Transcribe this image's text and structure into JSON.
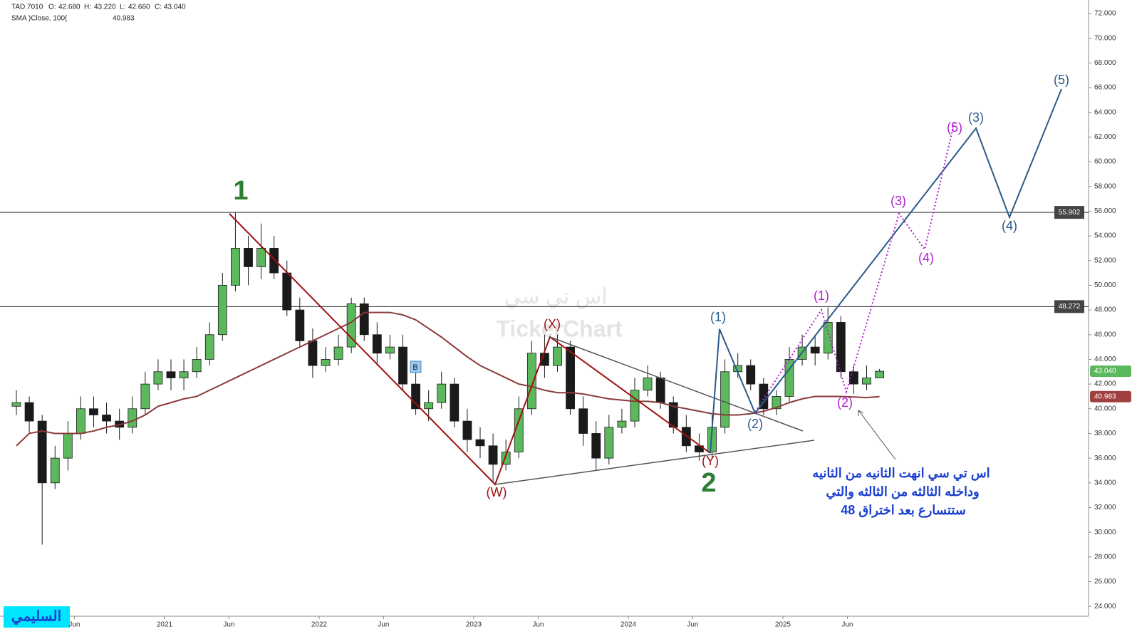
{
  "chart_data": {
    "type": "candlestick",
    "symbol": "TAD.7010",
    "ohlc_header": {
      "o_label": "O:",
      "o": "42.680",
      "h_label": "H:",
      "h": "43.220",
      "l_label": "L:",
      "l": "42.660",
      "c_label": "C:",
      "c": "43.040"
    },
    "sma_label": "SMA )Close, 100(",
    "sma_value": "40.983",
    "x": [
      "2020-01",
      "2020-02",
      "2020-03",
      "2020-04",
      "2020-05",
      "2020-06",
      "2020-07",
      "2020-08",
      "2020-09",
      "2020-10",
      "2020-11",
      "2020-12",
      "2021-01",
      "2021-02",
      "2021-03",
      "2021-04",
      "2021-05",
      "2021-06",
      "2021-07",
      "2021-08",
      "2021-09",
      "2021-10",
      "2021-11",
      "2021-12",
      "2022-01",
      "2022-02",
      "2022-03",
      "2022-04",
      "2022-05",
      "2022-06",
      "2022-07",
      "2022-08",
      "2022-09",
      "2022-10",
      "2022-11",
      "2022-12",
      "2023-01",
      "2023-02",
      "2023-03",
      "2023-04",
      "2023-05",
      "2023-06",
      "2023-07",
      "2023-08",
      "2023-09",
      "2023-10",
      "2023-11",
      "2023-12",
      "2024-01",
      "2024-02",
      "2024-03",
      "2024-04",
      "2024-05",
      "2024-06",
      "2024-07",
      "2024-08",
      "2024-09",
      "2024-10",
      "2024-11",
      "2024-12",
      "2025-01",
      "2025-02",
      "2025-03",
      "2025-04",
      "2025-05",
      "2025-06",
      "2025-07",
      "2025-08"
    ],
    "open": [
      40.2,
      40.5,
      39,
      34,
      36,
      38,
      40,
      39.5,
      39,
      38.5,
      40,
      42,
      43,
      42.5,
      43,
      44,
      46,
      50,
      53,
      51.5,
      53,
      51,
      48,
      45.5,
      43.5,
      44,
      45,
      48.5,
      46,
      44.5,
      45,
      42,
      40,
      40.5,
      42,
      39,
      37.5,
      37,
      35.5,
      36.5,
      40,
      44.5,
      43.5,
      45,
      40,
      38,
      36,
      38.5,
      39,
      41.5,
      42.5,
      40.5,
      38.5,
      37,
      36.5,
      38.5,
      43,
      43.5,
      42,
      40,
      41,
      44,
      45,
      44.5,
      47,
      43,
      42,
      42.5
    ],
    "high": [
      41.5,
      41,
      39.5,
      37,
      39,
      41,
      41,
      40.5,
      40,
      41,
      43,
      44,
      44,
      44,
      45,
      47,
      51,
      55.9,
      54,
      55,
      54,
      52,
      49,
      46.5,
      45,
      46,
      49,
      49,
      47,
      46,
      46,
      43,
      41.5,
      43,
      42.5,
      40,
      38.5,
      38,
      37.5,
      41,
      45.5,
      46,
      46,
      45.5,
      41,
      39,
      39.5,
      40,
      42.5,
      43.5,
      43,
      41,
      39.5,
      38,
      39.5,
      44,
      44.5,
      44,
      42.5,
      41.5,
      45,
      46,
      46,
      48.2,
      47.5,
      43.5,
      43.5,
      43.22
    ],
    "low": [
      39.5,
      38,
      29,
      33.5,
      35,
      37.5,
      38.5,
      38,
      37.5,
      38,
      39.5,
      41.5,
      41.5,
      41.5,
      42.5,
      43.5,
      45.5,
      49.5,
      50,
      50.5,
      50.5,
      47.5,
      45,
      42.5,
      43,
      43.5,
      44.5,
      45.5,
      43.5,
      44,
      41.5,
      39.5,
      39,
      40,
      38.5,
      36.5,
      36,
      34,
      35,
      36,
      39.5,
      42.5,
      43,
      39.5,
      37,
      35,
      35.5,
      38,
      38.5,
      41,
      40,
      38,
      36.5,
      35.8,
      36,
      38,
      42.5,
      41.5,
      39.5,
      39.5,
      40.5,
      43.5,
      43.5,
      44,
      42.5,
      41.2,
      41.5,
      42.66
    ],
    "close": [
      40.5,
      39,
      34,
      36,
      38,
      40,
      39.5,
      39,
      38.5,
      40,
      42,
      43,
      42.5,
      43,
      44,
      46,
      50,
      53,
      51.5,
      53,
      51,
      48,
      45.5,
      43.5,
      44,
      45,
      48.5,
      46,
      44.5,
      45,
      42,
      40,
      40.5,
      42,
      39,
      37.5,
      37,
      35.5,
      36.5,
      40,
      44.5,
      43.5,
      45,
      40,
      38,
      36,
      38.5,
      39,
      41.5,
      42.5,
      40.5,
      38.5,
      37,
      36.5,
      38.5,
      43,
      43.5,
      42,
      40,
      41,
      44,
      45,
      44.5,
      47,
      43,
      42,
      42.5,
      43.04
    ],
    "sma": [
      37,
      38,
      38.2,
      38,
      38,
      38,
      38.2,
      38.5,
      38.7,
      39,
      39.5,
      40.2,
      40.5,
      40.8,
      41,
      41.5,
      42,
      42.5,
      43,
      43.5,
      44,
      44.5,
      45,
      45.5,
      46,
      46.5,
      47,
      47.8,
      47.8,
      47.8,
      47.6,
      47.2,
      46.5,
      45.8,
      45,
      44.2,
      43.5,
      43,
      42.5,
      42,
      41.8,
      41.5,
      41.3,
      41.3,
      41.2,
      41,
      40.8,
      40.7,
      40.6,
      40.6,
      40.5,
      40.2,
      40,
      39.8,
      39.6,
      39.5,
      39.5,
      39.6,
      39.8,
      40.1,
      40.5,
      40.8,
      41,
      41,
      41,
      40.95,
      40.9,
      40.983
    ],
    "up_color": "#5cb85c",
    "down_color": "#1a1a1a",
    "sma_color": "#8b3a3a",
    "ylim": [
      23.2,
      73.1
    ],
    "yticks": [
      {
        "value": 24,
        "label": "24.000"
      },
      {
        "value": 26,
        "label": "26.000"
      },
      {
        "value": 28,
        "label": "28.000"
      },
      {
        "value": 30,
        "label": "30.000"
      },
      {
        "value": 32,
        "label": "32.000"
      },
      {
        "value": 34,
        "label": "34.000"
      },
      {
        "value": 36,
        "label": "36.000"
      },
      {
        "value": 38,
        "label": "38.000"
      },
      {
        "value": 40,
        "label": "40.000"
      },
      {
        "value": 42,
        "label": "42.000"
      },
      {
        "value": 44,
        "label": "44.000"
      },
      {
        "value": 46,
        "label": "46.000"
      },
      {
        "value": 48,
        "label": "48.000"
      },
      {
        "value": 50,
        "label": "50.000"
      },
      {
        "value": 52,
        "label": "52.000"
      },
      {
        "value": 54,
        "label": "54.000"
      },
      {
        "value": 56,
        "label": "56.000"
      },
      {
        "value": 58,
        "label": "58.000"
      },
      {
        "value": 60,
        "label": "60.000"
      },
      {
        "value": 62,
        "label": "62.000"
      },
      {
        "value": 64,
        "label": "64.000"
      },
      {
        "value": 66,
        "label": "66.000"
      },
      {
        "value": 68,
        "label": "68.000"
      },
      {
        "value": 70,
        "label": "70.000"
      },
      {
        "value": 72,
        "label": "72.000"
      }
    ],
    "xticks": [
      {
        "value": "2020-06",
        "label": "Jun"
      },
      {
        "value": "2021-01",
        "label": "2021"
      },
      {
        "value": "2021-06",
        "label": "Jun"
      },
      {
        "value": "2022-01",
        "label": "2022"
      },
      {
        "value": "2022-06",
        "label": "Jun"
      },
      {
        "value": "2023-01",
        "label": "2023"
      },
      {
        "value": "2023-06",
        "label": "Jun"
      },
      {
        "value": "2024-01",
        "label": "2024"
      },
      {
        "value": "2024-06",
        "label": "Jun"
      },
      {
        "value": "2025-01",
        "label": "2025"
      },
      {
        "value": "2025-06",
        "label": "Jun"
      }
    ],
    "hlines": [
      {
        "value": 55.902,
        "label": "55.902"
      },
      {
        "value": 48.272,
        "label": "48.272"
      }
    ],
    "price_tags": [
      {
        "value": 43.04,
        "label": "43.040",
        "color": "#5cb85c"
      },
      {
        "value": 40.983,
        "label": "40.983",
        "color": "#a04040"
      }
    ],
    "wave_labels": {
      "one": "1",
      "two": "2",
      "w": "(W)",
      "x": "(X)",
      "y": "(Y)",
      "b": "B",
      "blue1a": "(1)",
      "blue2a": "(2)",
      "p1": "(1)",
      "p2": "(2)",
      "p3": "(3)",
      "p4": "(4)",
      "p5": "(5)",
      "b3": "(3)",
      "b4": "(4)",
      "b5": "(5)"
    },
    "note": [
      "اس تي سي انهت الثانيه من الثانيه",
      "وداخله الثالثه من الثالثه والتي",
      "ستتسارع بعد اختراق 48"
    ],
    "watermark": [
      "اس تي سي",
      "TickerChart"
    ],
    "signature": "السليمي"
  }
}
